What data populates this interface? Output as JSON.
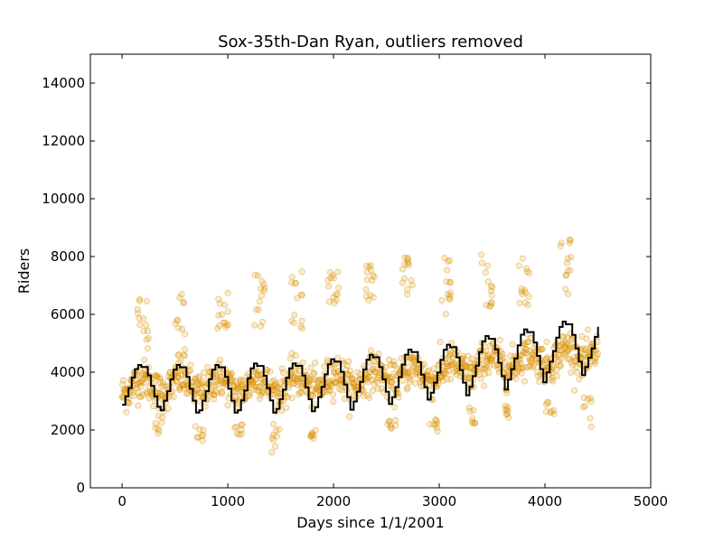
{
  "chart_data": {
    "type": "scatter",
    "title": "Sox-35th-Dan Ryan, outliers removed",
    "xlabel": "Days since 1/1/2001",
    "ylabel": "Riders",
    "xlim": [
      -300,
      5000
    ],
    "ylim": [
      0,
      15000
    ],
    "x_ticks": [
      "0",
      "1000",
      "2000",
      "3000",
      "4000",
      "5000"
    ],
    "y_ticks": [
      "0",
      "2000",
      "4000",
      "6000",
      "8000",
      "10000",
      "12000",
      "14000"
    ],
    "grid": false,
    "legend": "none",
    "colors": {
      "points": "#f0a000",
      "points_edge": "#c08000",
      "line": "#000000"
    },
    "series": [
      {
        "kind": "scatter",
        "approximate": true,
        "x_start": 0,
        "x_end": 4500,
        "point_count": 1100,
        "baseline_envelope": {
          "x": [
            0,
            500,
            1000,
            1500,
            2000,
            2500,
            3000,
            3500,
            4000,
            4500
          ],
          "y": [
            3500,
            3550,
            3550,
            3550,
            3700,
            3850,
            4000,
            4300,
            4500,
            4700
          ]
        },
        "seasonal_amplitude": 700,
        "high_outlier_clusters": [
          {
            "x": 200,
            "y_range": [
              4500,
              6600
            ]
          },
          {
            "x": 550,
            "y_range": [
              4500,
              7000
            ]
          },
          {
            "x": 950,
            "y_range": [
              5500,
              6800
            ]
          },
          {
            "x": 1300,
            "y_range": [
              5500,
              7400
            ]
          },
          {
            "x": 1650,
            "y_range": [
              5500,
              7500
            ]
          },
          {
            "x": 2000,
            "y_range": [
              6300,
              7500
            ]
          },
          {
            "x": 2350,
            "y_range": [
              6000,
              7700
            ]
          },
          {
            "x": 2700,
            "y_range": [
              6500,
              8000
            ]
          },
          {
            "x": 3050,
            "y_range": [
              6000,
              8200
            ]
          },
          {
            "x": 3450,
            "y_range": [
              6000,
              8400
            ]
          },
          {
            "x": 3800,
            "y_range": [
              6200,
              8400
            ]
          },
          {
            "x": 4200,
            "y_range": [
              6500,
              8800
            ]
          }
        ],
        "low_outlier_clusters": [
          {
            "x": 350,
            "y_range": [
              1800,
              2500
            ]
          },
          {
            "x": 730,
            "y_range": [
              1400,
              2200
            ]
          },
          {
            "x": 1100,
            "y_range": [
              1800,
              2200
            ]
          },
          {
            "x": 1450,
            "y_range": [
              1100,
              2100
            ]
          },
          {
            "x": 1800,
            "y_range": [
              1700,
              2000
            ]
          },
          {
            "x": 2550,
            "y_range": [
              1700,
              2400
            ]
          },
          {
            "x": 2950,
            "y_range": [
              1900,
              2500
            ]
          },
          {
            "x": 3300,
            "y_range": [
              2200,
              2800
            ]
          },
          {
            "x": 3650,
            "y_range": [
              2300,
              3000
            ]
          },
          {
            "x": 4050,
            "y_range": [
              2500,
              3000
            ]
          },
          {
            "x": 4400,
            "y_range": [
              2100,
              3200
            ]
          }
        ]
      },
      {
        "kind": "step",
        "approximate": true,
        "period_days": 365,
        "x_start": 0,
        "x_end": 4510,
        "year_peaks": [
          4250,
          4250,
          4250,
          4300,
          4300,
          4450,
          4600,
          4780,
          4950,
          5250,
          5480,
          5750,
          5700
        ],
        "year_troughs": [
          2800,
          2600,
          2600,
          2600,
          2650,
          2700,
          2900,
          3050,
          3200,
          3400,
          3650,
          3900,
          4100
        ]
      }
    ]
  }
}
